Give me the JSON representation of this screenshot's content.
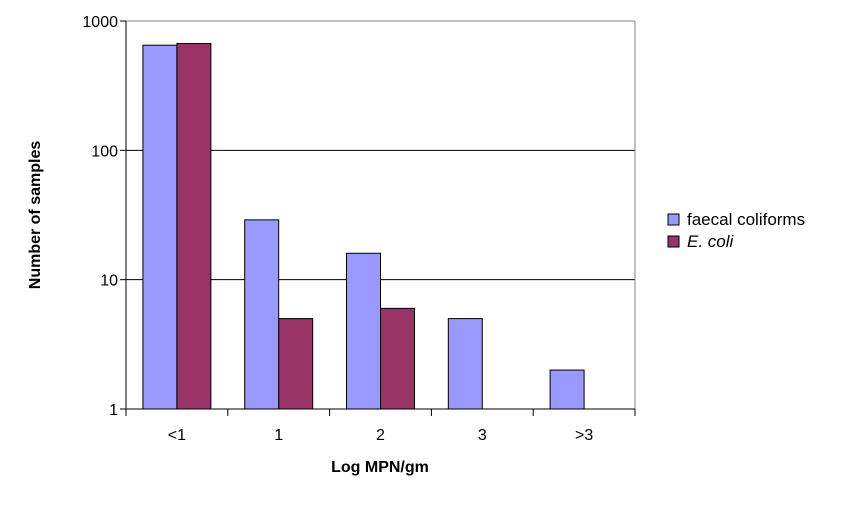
{
  "chart_data": {
    "type": "bar",
    "y_scale": "log",
    "xlabel": "Log MPN/gm",
    "ylabel": "Number of samples",
    "ylim": [
      1,
      1000
    ],
    "yticks": [
      "1",
      "10",
      "100",
      "1000"
    ],
    "categories": [
      "<1",
      "1",
      "2",
      "3",
      ">3"
    ],
    "grid": "horizontal major gridlines",
    "legend_position": "right",
    "series": [
      {
        "name": "faecal coliforms",
        "italic": false,
        "color": "#9999ff",
        "values": [
          650,
          29,
          16,
          5,
          2
        ]
      },
      {
        "name": "E. coli",
        "italic": true,
        "color": "#993366",
        "values": [
          670,
          5,
          6,
          null,
          null
        ]
      }
    ]
  }
}
